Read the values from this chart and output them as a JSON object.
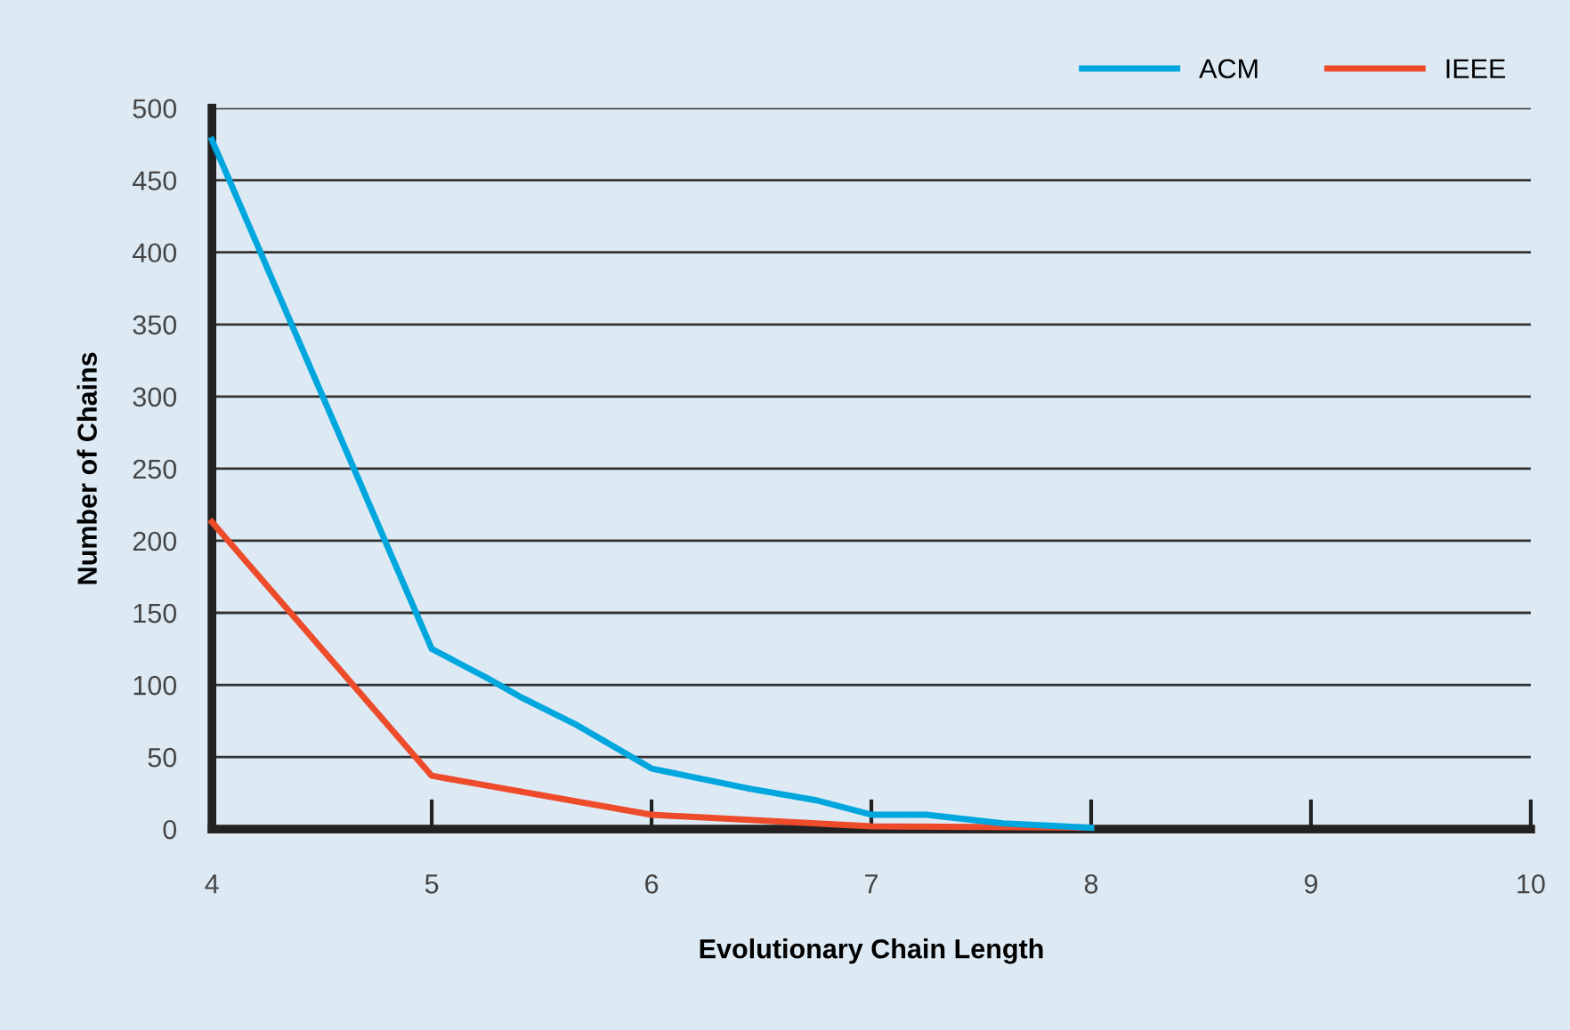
{
  "chart_data": {
    "type": "line",
    "xlabel": "Evolutionary Chain Length",
    "ylabel": "Number of Chains",
    "xlim": [
      4,
      10
    ],
    "xticks": [
      4,
      5,
      6,
      7,
      8,
      9,
      10
    ],
    "ylim": [
      0,
      500
    ],
    "yticks": [
      0,
      50,
      100,
      150,
      200,
      250,
      300,
      350,
      400,
      450,
      500
    ],
    "grid": "y",
    "legend": "top right",
    "marker": "none",
    "line_style": "solid",
    "series": [
      {
        "name": "ACM",
        "color": "#00a6de",
        "x": [
          4,
          5,
          5.25,
          5.4,
          5.65,
          6,
          6.45,
          6.75,
          7,
          7.25,
          7.6,
          8
        ],
        "values": [
          478,
          125,
          105,
          92,
          73,
          42,
          28,
          20,
          10,
          10,
          4,
          1
        ]
      },
      {
        "name": "IEEE",
        "color": "#ee4b2b",
        "x": [
          4,
          5,
          6,
          6.5,
          7,
          8
        ],
        "values": [
          213,
          37,
          10,
          6,
          2,
          1
        ]
      }
    ]
  }
}
